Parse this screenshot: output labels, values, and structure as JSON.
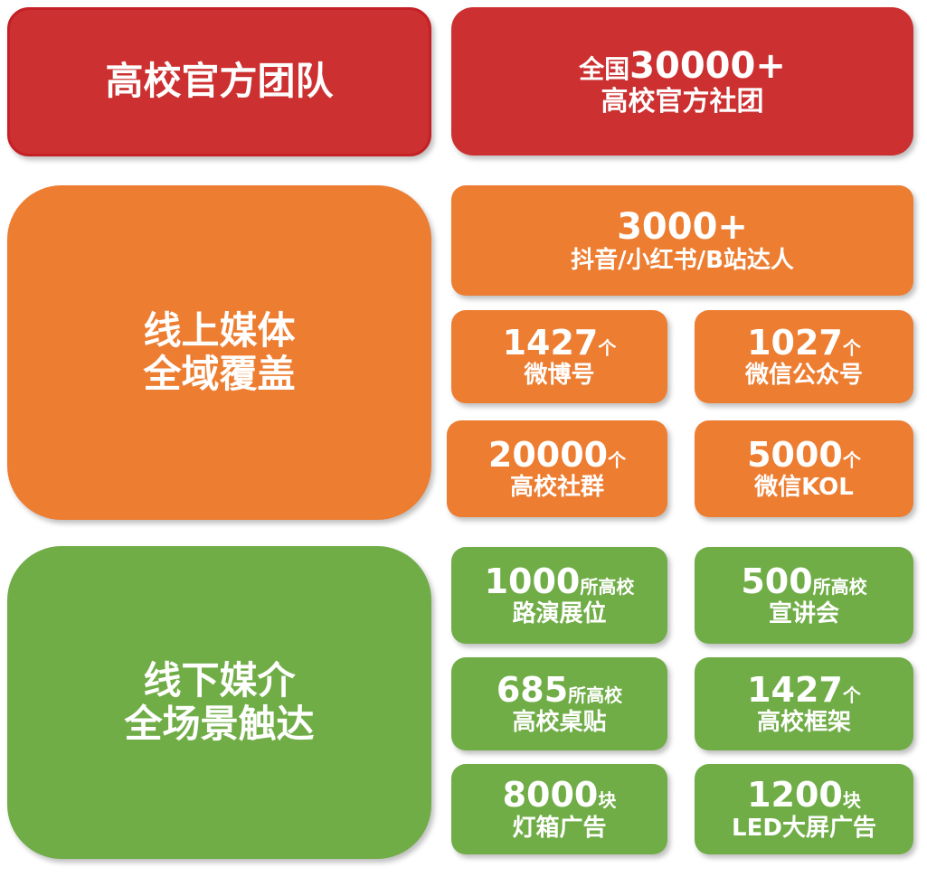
{
  "colors": {
    "red": "#cd3030",
    "orange": "#ed7d31",
    "green": "#70ad47"
  },
  "team": {
    "title": "高校官方团队",
    "stat_prefix": "全国",
    "stat_value": "30000+",
    "stat_label": "高校官方社团"
  },
  "online": {
    "title_line1": "线上媒体",
    "title_line2": "全域覆盖",
    "items": [
      {
        "value": "3000+",
        "unit": "",
        "label": "抖音/小红书/B站达人"
      },
      {
        "value": "1427",
        "unit": "个",
        "label": "微博号"
      },
      {
        "value": "1027",
        "unit": "个",
        "label": "微信公众号"
      },
      {
        "value": "20000",
        "unit": "个",
        "label": "高校社群"
      },
      {
        "value": "5000",
        "unit": "个",
        "label": "微信KOL"
      }
    ]
  },
  "offline": {
    "title_line1": "线下媒介",
    "title_line2": "全场景触达",
    "items": [
      {
        "value": "1000",
        "unit": "所高校",
        "label": "路演展位"
      },
      {
        "value": "500",
        "unit": "所高校",
        "label": "宣讲会"
      },
      {
        "value": "685",
        "unit": "所高校",
        "label": "高校桌贴"
      },
      {
        "value": "1427",
        "unit": "个",
        "label": "高校框架"
      },
      {
        "value": "8000",
        "unit": "块",
        "label": "灯箱广告"
      },
      {
        "value": "1200",
        "unit": "块",
        "label": "LED大屏广告"
      }
    ]
  }
}
